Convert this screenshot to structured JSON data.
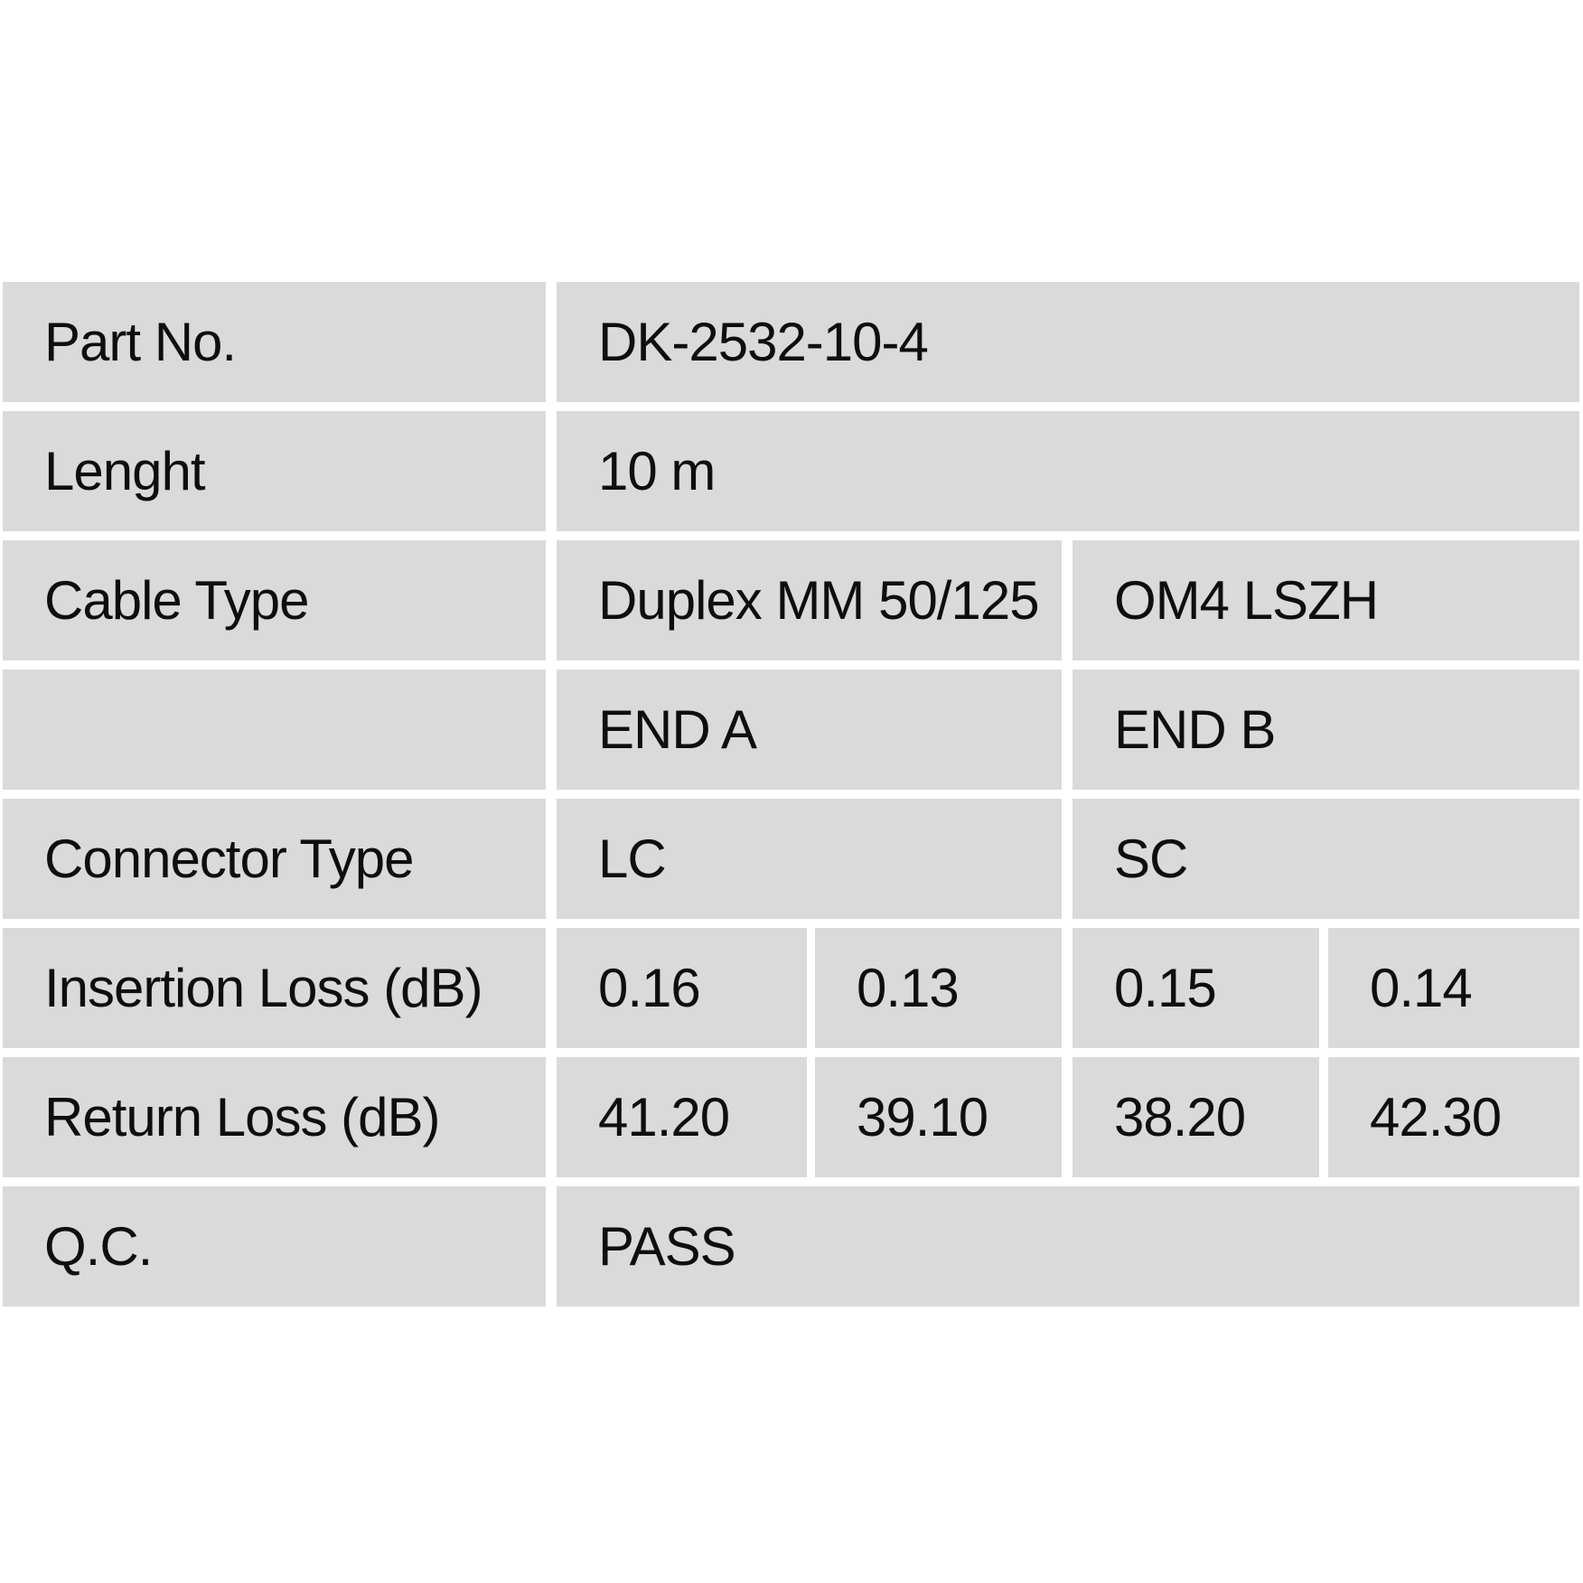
{
  "table": {
    "colors": {
      "cell_bg": "#d9dad9",
      "page_bg": "#ffffff",
      "text": "#0e0e0e"
    },
    "rows": {
      "part_no": {
        "label": "Part No.",
        "value": "DK-2532-10-4"
      },
      "length": {
        "label": "Lenght",
        "value": "10 m"
      },
      "cable_type": {
        "label": "Cable Type",
        "value_a": "Duplex MM 50/125",
        "value_b": "OM4 LSZH"
      },
      "ends": {
        "label": "",
        "value_a": "END A",
        "value_b": "END B"
      },
      "connector_type": {
        "label": "Connector Type",
        "value_a": "LC",
        "value_b": "SC"
      },
      "insertion_loss": {
        "label": "Insertion Loss (dB)",
        "values": [
          "0.16",
          "0.13",
          "0.15",
          "0.14"
        ]
      },
      "return_loss": {
        "label": "Return Loss (dB)",
        "values": [
          "41.20",
          "39.10",
          "38.20",
          "42.30"
        ]
      },
      "qc": {
        "label": "Q.C.",
        "value": "PASS"
      }
    }
  }
}
